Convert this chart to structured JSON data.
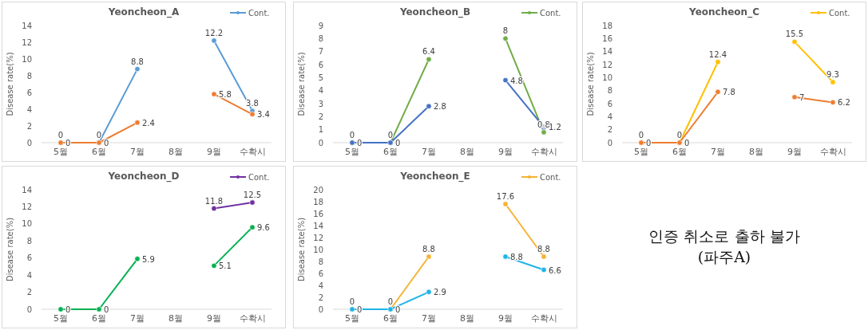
{
  "chart_data": [
    {
      "type": "line",
      "title": "Yeoncheon_A",
      "ylabel": "Disease rate(%)",
      "categories": [
        "5월",
        "6월",
        "7월",
        "8월",
        "9월",
        "수확시"
      ],
      "ylim": [
        0,
        14
      ],
      "yticks": [
        0,
        2,
        4,
        6,
        8,
        10,
        12,
        14
      ],
      "legend": "top right",
      "marker": "circle",
      "data_labels": true,
      "grid": false,
      "series": [
        {
          "name": "Cont.",
          "color": "#5b9bd5",
          "values": [
            0,
            0,
            8.8,
            null,
            12.2,
            3.8
          ]
        },
        {
          "color": "#ed7d31",
          "values": [
            0,
            0,
            2.4,
            null,
            5.8,
            3.4
          ]
        }
      ]
    },
    {
      "type": "line",
      "title": "Yeoncheon_B",
      "ylabel": "Disease rate(%)",
      "categories": [
        "5월",
        "6월",
        "7월",
        "8월",
        "9월",
        "수확시"
      ],
      "ylim": [
        0,
        9
      ],
      "yticks": [
        0,
        1,
        2,
        3,
        4,
        5,
        6,
        7,
        8,
        9
      ],
      "legend": "top right",
      "marker": "circle",
      "data_labels": true,
      "grid": false,
      "series": [
        {
          "name": "Cont.",
          "color": "#70ad47",
          "values": [
            0,
            0,
            6.4,
            null,
            8,
            0.8
          ]
        },
        {
          "color": "#4472c4",
          "values": [
            0,
            0,
            2.8,
            null,
            4.8,
            1.2
          ]
        }
      ]
    },
    {
      "type": "line",
      "title": "Yeoncheon_C",
      "ylabel": "Disease rate(%)",
      "categories": [
        "5월",
        "6월",
        "7월",
        "8월",
        "9월",
        "수확시"
      ],
      "ylim": [
        0,
        18
      ],
      "yticks": [
        0,
        2,
        4,
        6,
        8,
        10,
        12,
        14,
        16,
        18
      ],
      "legend": "top right",
      "marker": "circle",
      "data_labels": true,
      "grid": false,
      "series": [
        {
          "name": "Cont.",
          "color": "#ffc000",
          "values": [
            0,
            0,
            12.4,
            null,
            15.5,
            9.3
          ]
        },
        {
          "color": "#ed7d31",
          "values": [
            0,
            0,
            7.8,
            null,
            7,
            6.2
          ]
        }
      ]
    },
    {
      "type": "line",
      "title": "Yeoncheon_D",
      "ylabel": "Disease rate(%)",
      "categories": [
        "5월",
        "6월",
        "7월",
        "8월",
        "9월",
        "수확시"
      ],
      "ylim": [
        0,
        14
      ],
      "yticks": [
        0,
        2,
        4,
        6,
        8,
        10,
        12,
        14
      ],
      "legend": "top right",
      "marker": "circle",
      "data_labels": true,
      "grid": false,
      "series": [
        {
          "name": "Cont.",
          "color": "#7030a0",
          "values": [
            null,
            null,
            null,
            null,
            11.8,
            12.5
          ]
        },
        {
          "color": "#00b050",
          "values": [
            0,
            0,
            5.9,
            null,
            5.1,
            9.6
          ]
        }
      ]
    },
    {
      "type": "line",
      "title": "Yeoncheon_E",
      "ylabel": "Disease rate(%)",
      "categories": [
        "5월",
        "6월",
        "7월",
        "8월",
        "9월",
        "수확시"
      ],
      "ylim": [
        0,
        20
      ],
      "yticks": [
        0,
        2,
        4,
        6,
        8,
        10,
        12,
        14,
        16,
        18,
        20
      ],
      "legend": "top right",
      "marker": "circle",
      "data_labels": true,
      "grid": false,
      "series": [
        {
          "name": "Cont.",
          "color": "#f5b335",
          "values": [
            0,
            0,
            8.8,
            null,
            17.6,
            8.8
          ]
        },
        {
          "color": "#1fb4e8",
          "values": [
            0,
            0,
            2.9,
            null,
            8.8,
            6.6
          ]
        }
      ]
    },
    {
      "type": "other",
      "annotations": [
        "인증 취소로 출하 불가",
        "(파주A)"
      ]
    }
  ]
}
